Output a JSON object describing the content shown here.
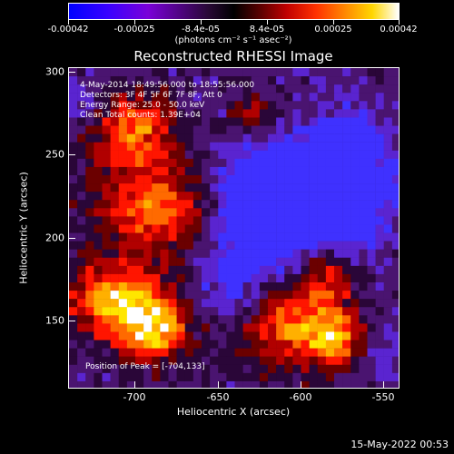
{
  "header": {
    "colorbar_labels": [
      "-0.00042",
      "-0.00025",
      "-8.4e-05",
      "8.4e-05",
      "0.00025",
      "0.00042"
    ],
    "colorbar_units": "(photons cm⁻² s⁻¹ asec⁻²)",
    "title": "Reconstructed RHESSI Image"
  },
  "overlay": {
    "line1": "4-May-2014 18:49:56.000 to 18:55:56.000",
    "line2": "Detectors: 3F 4F 5F 6F 7F 8F, Att 0",
    "line3": "Energy Range: 25.0 - 50.0 keV",
    "line4": "Clean     Total counts: 1.39E+04",
    "peak": "Position of Peak = [-704,133]"
  },
  "axes": {
    "x_ticks": [
      "-700",
      "-650",
      "-600",
      "-550"
    ],
    "y_ticks": [
      "300",
      "250",
      "200",
      "150"
    ],
    "x_title": "Heliocentric X (arcsec)",
    "y_title": "Heliocentric Y (arcsec)"
  },
  "footer": {
    "date": "15-May-2022 00:53"
  },
  "style": {
    "background": "#000000",
    "text": "#ffffff",
    "colormap_low": "#0000ff",
    "colormap_mid": "#000000",
    "colormap_high": "#ffffff"
  }
}
